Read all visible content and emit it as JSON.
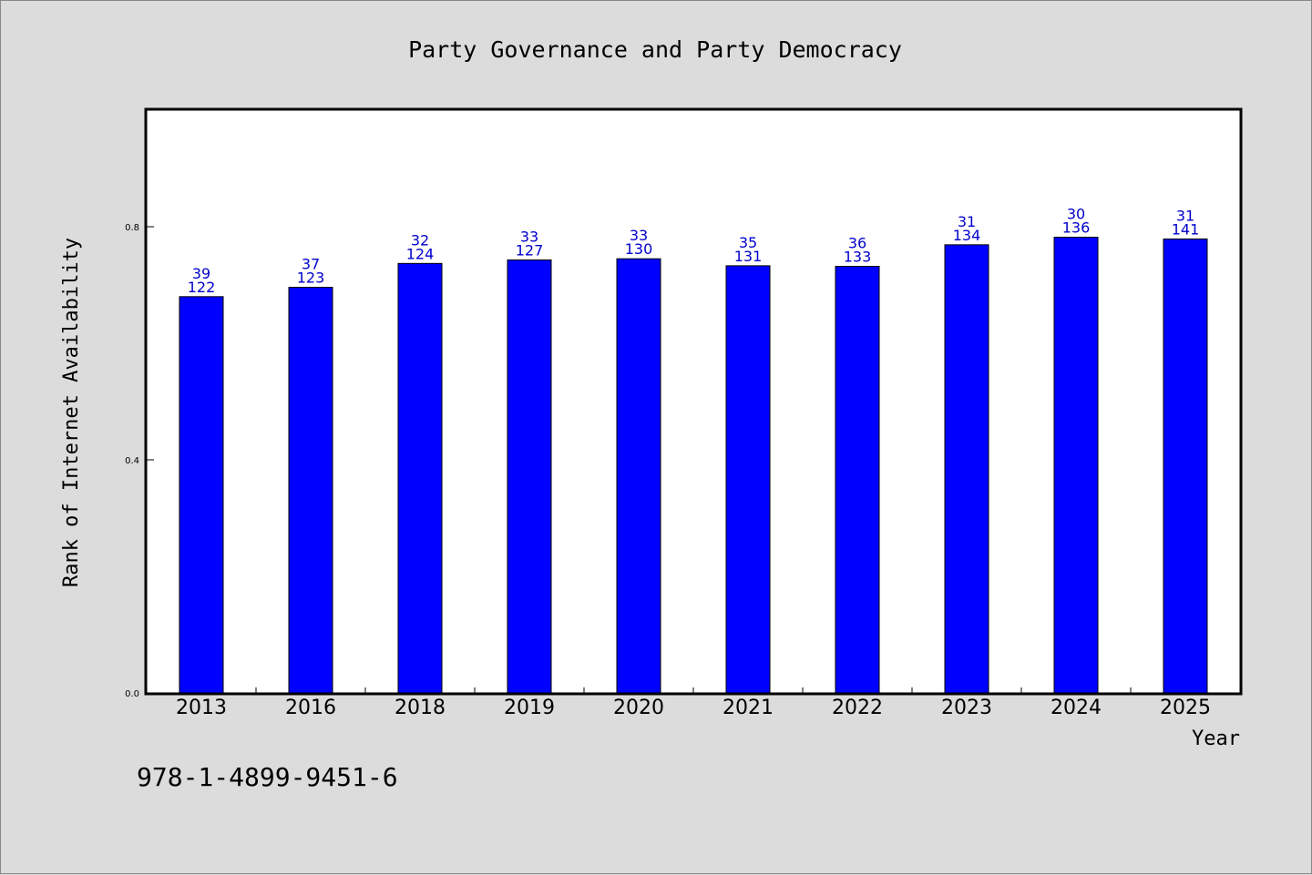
{
  "chart_data": {
    "type": "bar",
    "title": "Party Governance and Party Democracy",
    "xlabel": "Year",
    "ylabel": "Rank of Internet Availability",
    "categories": [
      "2013",
      "2016",
      "2018",
      "2019",
      "2020",
      "2021",
      "2022",
      "2023",
      "2024",
      "2025"
    ],
    "values": [
      0.68,
      0.696,
      0.737,
      0.743,
      0.745,
      0.733,
      0.732,
      0.769,
      0.782,
      0.779
    ],
    "label_top": [
      "39",
      "37",
      "32",
      "33",
      "33",
      "35",
      "36",
      "31",
      "30",
      "31"
    ],
    "label_bottom": [
      "122",
      "123",
      "124",
      "127",
      "130",
      "131",
      "133",
      "134",
      "136",
      "141"
    ],
    "yticks": [
      "0.0",
      "0.4",
      "0.8"
    ],
    "ytick_values": [
      0.0,
      0.4,
      0.8
    ],
    "ylim": [
      0,
      1.0
    ],
    "bar_color": "#0000ff",
    "label_color": "#0000cc",
    "grid": false
  },
  "footnote": "978-1-4899-9451-6"
}
